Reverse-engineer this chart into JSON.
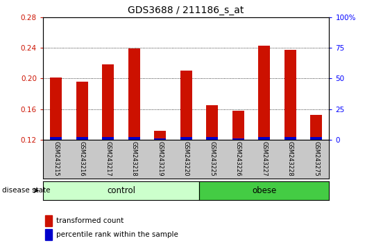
{
  "title": "GDS3688 / 211186_s_at",
  "samples": [
    "GSM243215",
    "GSM243216",
    "GSM243217",
    "GSM243218",
    "GSM243219",
    "GSM243220",
    "GSM243225",
    "GSM243226",
    "GSM243227",
    "GSM243228",
    "GSM243275"
  ],
  "red_values": [
    0.201,
    0.196,
    0.218,
    0.239,
    0.132,
    0.21,
    0.165,
    0.158,
    0.243,
    0.237,
    0.152
  ],
  "blue_values": [
    0.0035,
    0.0035,
    0.003,
    0.003,
    0.002,
    0.003,
    0.003,
    0.002,
    0.003,
    0.003,
    0.003
  ],
  "ymin": 0.12,
  "ymax": 0.28,
  "yticks": [
    0.12,
    0.16,
    0.2,
    0.24,
    0.28
  ],
  "right_yticks": [
    0,
    25,
    50,
    75,
    100
  ],
  "right_yticklabels": [
    "0",
    "25",
    "50",
    "75",
    "100%"
  ],
  "groups": [
    {
      "label": "control",
      "indices": [
        0,
        1,
        2,
        3,
        4,
        5
      ],
      "color": "#ccffcc"
    },
    {
      "label": "obese",
      "indices": [
        6,
        7,
        8,
        9,
        10
      ],
      "color": "#44cc44"
    }
  ],
  "group_label": "disease state",
  "bar_color_red": "#cc1100",
  "bar_color_blue": "#0000cc",
  "bar_width": 0.45,
  "legend_red": "transformed count",
  "legend_blue": "percentile rank within the sample",
  "background_color": "#ffffff",
  "plot_bg_color": "#ffffff",
  "tick_area_color": "#c8c8c8",
  "grid_color": "#000000",
  "title_fontsize": 10,
  "tick_fontsize": 7.5,
  "label_fontsize": 8.5
}
